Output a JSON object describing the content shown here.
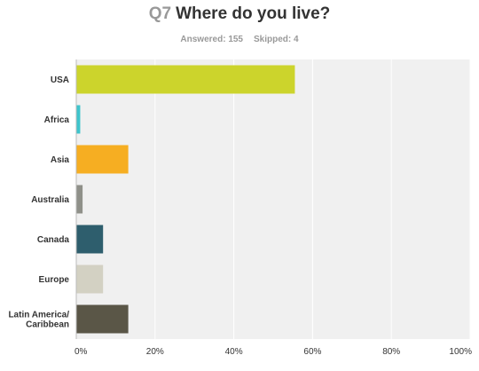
{
  "header": {
    "question_number": "Q7",
    "question_text": "Where do you live?",
    "answered_label": "Answered:",
    "answered_count": "155",
    "skipped_label": "Skipped:",
    "skipped_count": "4"
  },
  "chart_data": {
    "type": "bar",
    "orientation": "horizontal",
    "categories": [
      [
        "USA"
      ],
      [
        "Africa"
      ],
      [
        "Asia"
      ],
      [
        "Australia"
      ],
      [
        "Canada"
      ],
      [
        "Europe"
      ],
      [
        "Latin America/",
        "Caribbean"
      ]
    ],
    "values": [
      55.5,
      1.0,
      13.2,
      1.6,
      6.8,
      6.8,
      13.2
    ],
    "colors": [
      "#ccd42c",
      "#3ec4cc",
      "#f6ae22",
      "#8f9089",
      "#2e5e6d",
      "#d3d1c3",
      "#5a5647"
    ],
    "xlim": [
      0,
      100
    ],
    "x_ticks": [
      0,
      20,
      40,
      60,
      80,
      100
    ],
    "x_tick_labels": [
      "0%",
      "20%",
      "40%",
      "60%",
      "80%",
      "100%"
    ],
    "grid": true,
    "plot_background": "#f0f0f0",
    "gridline_color": "#ffffff"
  }
}
